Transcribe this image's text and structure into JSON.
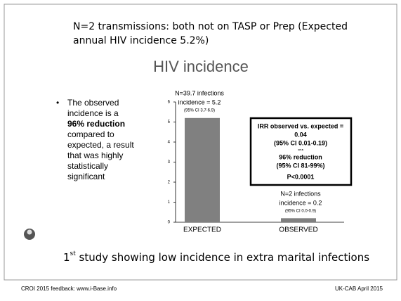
{
  "slide": {
    "heading": [
      "N=2 transmissions: both not on TASP or Prep (Expected",
      "annual HIV incidence 5.2%)"
    ],
    "subtitle": "HIV incidence",
    "bullet": [
      "The observed",
      "incidence is a",
      "96% reduction",
      "compared to",
      "expected, a result",
      "that was highly",
      "statistically",
      "significant"
    ],
    "conclusion": {
      "number": "1",
      "suffix": "st",
      "text": " study showing low incidence in extra marital infections"
    },
    "footer_left": "CROI 2015 feedback: www.i-Base.info",
    "footer_right": "UK-CAB April 2015"
  },
  "chart_data": {
    "type": "bar",
    "categories": [
      "EXPECTED",
      "OBSERVED"
    ],
    "values": [
      5.2,
      0.2
    ],
    "color": "#808080",
    "ylim": [
      0,
      6
    ],
    "yticks": [
      0,
      1,
      2,
      3,
      4,
      5,
      6
    ],
    "annotations": [
      [
        "N=39.7 infections",
        "incidence = 5.2",
        "(95% CI 3.7-6.9)"
      ],
      [
        "N=2 infections",
        "incidence = 0.2",
        "(95% CI 0.0-0.9)"
      ]
    ],
    "box": [
      "IRR observed vs. expected =",
      "0.04",
      "(95% CI 0.01-0.19)",
      "or a",
      "96% reduction",
      "(95% CI 81-99%)",
      "P<0.0001"
    ]
  }
}
